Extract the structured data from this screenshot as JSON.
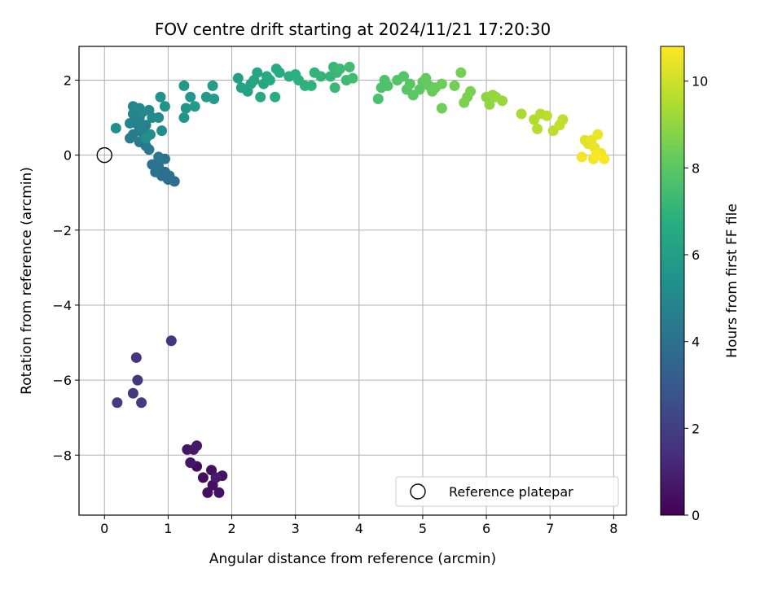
{
  "chart_data": {
    "type": "scatter",
    "title": "FOV centre drift starting at 2024/11/21 17:20:30",
    "xlabel": "Angular distance from reference (arcmin)",
    "ylabel": "Rotation from reference (arcmin)",
    "xlim": [
      -0.4,
      8.2
    ],
    "ylim": [
      -9.6,
      2.9
    ],
    "xticks": [
      "0",
      "1",
      "2",
      "3",
      "4",
      "5",
      "6",
      "7",
      "8"
    ],
    "yticks": [
      "−8",
      "−6",
      "−4",
      "−2",
      "0",
      "2"
    ],
    "grid": true,
    "legend": {
      "placement": "lower-right",
      "entries": [
        "Reference platepar"
      ]
    },
    "reference_point": {
      "x": 0,
      "y": 0
    },
    "colorbar": {
      "label": "Hours from first FF file",
      "range": [
        0,
        10.8
      ],
      "ticks": [
        "0",
        "2",
        "4",
        "6",
        "8",
        "10"
      ],
      "colormap": "viridis"
    },
    "points": [
      [
        1.45,
        -8.3,
        0.3
      ],
      [
        1.55,
        -8.6,
        0.35
      ],
      [
        1.62,
        -9.0,
        0.4
      ],
      [
        1.7,
        -8.8,
        0.45
      ],
      [
        1.68,
        -8.4,
        0.4
      ],
      [
        1.8,
        -9.0,
        0.5
      ],
      [
        1.85,
        -8.55,
        0.55
      ],
      [
        1.3,
        -7.85,
        0.6
      ],
      [
        1.35,
        -8.2,
        0.65
      ],
      [
        1.4,
        -7.85,
        0.7
      ],
      [
        1.45,
        -7.75,
        0.75
      ],
      [
        1.75,
        -8.6,
        0.8
      ],
      [
        1.05,
        -4.95,
        1.6
      ],
      [
        0.5,
        -5.4,
        1.7
      ],
      [
        0.52,
        -6.0,
        1.75
      ],
      [
        0.45,
        -6.35,
        1.8
      ],
      [
        0.2,
        -6.6,
        1.85
      ],
      [
        0.58,
        -6.6,
        1.9
      ],
      [
        1.1,
        -0.7,
        3.8
      ],
      [
        1.0,
        -0.65,
        3.9
      ],
      [
        0.95,
        -0.45,
        3.85
      ],
      [
        0.9,
        -0.55,
        3.95
      ],
      [
        1.02,
        -0.55,
        4.0
      ],
      [
        0.75,
        -0.25,
        4.05
      ],
      [
        0.85,
        -0.3,
        4.1
      ],
      [
        0.8,
        -0.45,
        4.15
      ],
      [
        0.95,
        -0.1,
        4.2
      ],
      [
        0.85,
        -0.05,
        4.25
      ],
      [
        0.7,
        0.15,
        4.3
      ],
      [
        0.65,
        0.25,
        4.35
      ],
      [
        0.55,
        0.35,
        4.4
      ],
      [
        0.4,
        0.45,
        4.45
      ],
      [
        0.45,
        0.55,
        4.5
      ],
      [
        0.6,
        0.6,
        4.55
      ],
      [
        0.55,
        0.7,
        4.6
      ],
      [
        0.65,
        0.8,
        4.65
      ],
      [
        0.5,
        0.85,
        4.7
      ],
      [
        0.4,
        0.85,
        4.75
      ],
      [
        0.55,
        1.0,
        4.8
      ],
      [
        0.45,
        1.1,
        4.85
      ],
      [
        0.6,
        1.15,
        4.9
      ],
      [
        0.45,
        1.3,
        4.95
      ],
      [
        0.55,
        1.25,
        5.0
      ],
      [
        0.7,
        1.2,
        5.05
      ],
      [
        0.75,
        1.0,
        5.1
      ],
      [
        0.85,
        1.0,
        5.15
      ],
      [
        0.9,
        0.65,
        5.2
      ],
      [
        0.72,
        0.55,
        5.25
      ],
      [
        0.65,
        0.45,
        5.3
      ],
      [
        0.18,
        0.72,
        5.35
      ],
      [
        0.88,
        1.55,
        5.45
      ],
      [
        0.95,
        1.3,
        5.5
      ],
      [
        1.25,
        1.0,
        5.6
      ],
      [
        1.28,
        1.25,
        5.65
      ],
      [
        1.35,
        1.55,
        5.7
      ],
      [
        1.42,
        1.3,
        5.75
      ],
      [
        1.25,
        1.85,
        5.8
      ],
      [
        1.6,
        1.55,
        5.85
      ],
      [
        1.72,
        1.5,
        5.9
      ],
      [
        1.7,
        1.85,
        5.95
      ],
      [
        2.1,
        2.05,
        6.1
      ],
      [
        2.15,
        1.8,
        6.15
      ],
      [
        2.25,
        1.7,
        6.2
      ],
      [
        2.3,
        1.9,
        6.25
      ],
      [
        2.35,
        2.0,
        6.3
      ],
      [
        2.4,
        2.2,
        6.35
      ],
      [
        2.5,
        1.9,
        6.4
      ],
      [
        2.55,
        2.1,
        6.45
      ],
      [
        2.45,
        1.55,
        6.5
      ],
      [
        2.6,
        2.0,
        6.55
      ],
      [
        2.7,
        2.3,
        6.6
      ],
      [
        2.75,
        2.2,
        6.65
      ],
      [
        2.68,
        1.55,
        6.7
      ],
      [
        2.9,
        2.1,
        6.75
      ],
      [
        3.0,
        2.15,
        6.8
      ],
      [
        3.05,
        2.0,
        6.85
      ],
      [
        3.15,
        1.85,
        6.9
      ],
      [
        3.25,
        1.85,
        6.95
      ],
      [
        3.3,
        2.2,
        7.0
      ],
      [
        3.4,
        2.1,
        7.05
      ],
      [
        3.55,
        2.1,
        7.1
      ],
      [
        3.6,
        2.35,
        7.15
      ],
      [
        3.65,
        2.2,
        7.2
      ],
      [
        3.62,
        1.8,
        7.25
      ],
      [
        3.7,
        2.3,
        7.3
      ],
      [
        3.8,
        2.0,
        7.35
      ],
      [
        3.85,
        2.35,
        7.4
      ],
      [
        3.9,
        2.05,
        7.45
      ],
      [
        4.3,
        1.5,
        7.6
      ],
      [
        4.35,
        1.8,
        7.65
      ],
      [
        4.4,
        2.0,
        7.7
      ],
      [
        4.45,
        1.85,
        7.75
      ],
      [
        4.6,
        2.0,
        7.8
      ],
      [
        4.7,
        2.1,
        7.85
      ],
      [
        4.75,
        1.75,
        7.9
      ],
      [
        4.8,
        1.9,
        7.95
      ],
      [
        4.85,
        1.6,
        8.0
      ],
      [
        4.95,
        1.75,
        8.05
      ],
      [
        5.0,
        1.95,
        8.1
      ],
      [
        5.05,
        2.05,
        8.15
      ],
      [
        5.1,
        1.85,
        8.2
      ],
      [
        5.15,
        1.7,
        8.25
      ],
      [
        5.2,
        1.8,
        8.3
      ],
      [
        5.3,
        1.9,
        8.35
      ],
      [
        5.3,
        1.25,
        8.4
      ],
      [
        5.5,
        1.85,
        8.45
      ],
      [
        5.6,
        2.2,
        8.5
      ],
      [
        5.7,
        1.55,
        8.55
      ],
      [
        5.75,
        1.7,
        8.6
      ],
      [
        5.65,
        1.4,
        8.65
      ],
      [
        6.0,
        1.55,
        8.9
      ],
      [
        6.05,
        1.35,
        8.95
      ],
      [
        6.1,
        1.6,
        9.0
      ],
      [
        6.15,
        1.55,
        9.05
      ],
      [
        6.25,
        1.45,
        9.1
      ],
      [
        6.55,
        1.1,
        9.4
      ],
      [
        6.75,
        0.95,
        9.5
      ],
      [
        6.85,
        1.1,
        9.55
      ],
      [
        6.8,
        0.7,
        9.6
      ],
      [
        6.95,
        1.05,
        9.65
      ],
      [
        7.05,
        0.65,
        9.7
      ],
      [
        7.2,
        0.95,
        9.75
      ],
      [
        7.15,
        0.8,
        9.8
      ],
      [
        7.55,
        0.4,
        10.3
      ],
      [
        7.6,
        0.3,
        10.35
      ],
      [
        7.65,
        0.4,
        10.4
      ],
      [
        7.7,
        0.2,
        10.45
      ],
      [
        7.75,
        0.55,
        10.5
      ],
      [
        7.8,
        0.05,
        10.55
      ],
      [
        7.5,
        -0.05,
        10.6
      ],
      [
        7.68,
        -0.1,
        10.65
      ],
      [
        7.85,
        -0.1,
        10.7
      ],
      [
        7.72,
        0.0,
        10.75
      ]
    ]
  }
}
